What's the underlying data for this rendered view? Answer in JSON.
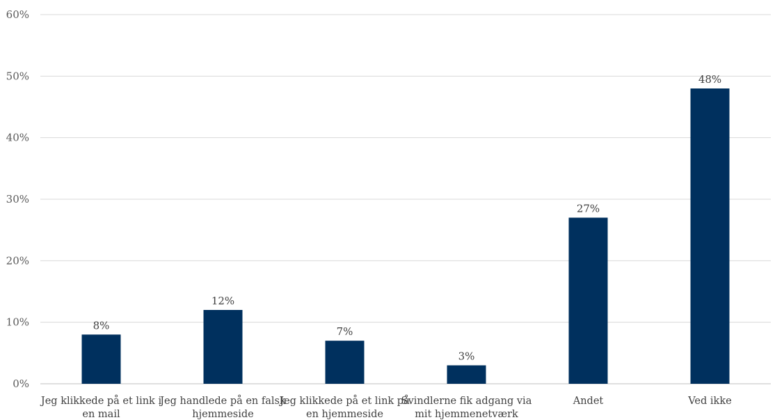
{
  "chart_data": {
    "type": "bar",
    "title": "",
    "xlabel": "",
    "ylabel": "",
    "ylim": [
      0,
      60
    ],
    "yticks": [
      "0%",
      "10%",
      "20%",
      "30%",
      "40%",
      "50%",
      "60%"
    ],
    "grid": true,
    "legend": "none",
    "categories": [
      [
        "Jeg klikkede på et link i",
        "en mail"
      ],
      [
        "Jeg handlede på en falsk",
        "hjemmeside"
      ],
      [
        "Jeg klikkede på et link på",
        "en hjemmeside"
      ],
      [
        "Svindlerne fik adgang via",
        "mit hjemmenetværk"
      ],
      [
        "Andet"
      ],
      [
        "Ved ikke"
      ]
    ],
    "values": [
      8,
      12,
      7,
      3,
      27,
      48
    ],
    "data_labels": [
      "8%",
      "12%",
      "7%",
      "3%",
      "27%",
      "48%"
    ],
    "bar_color": "#00305e"
  }
}
